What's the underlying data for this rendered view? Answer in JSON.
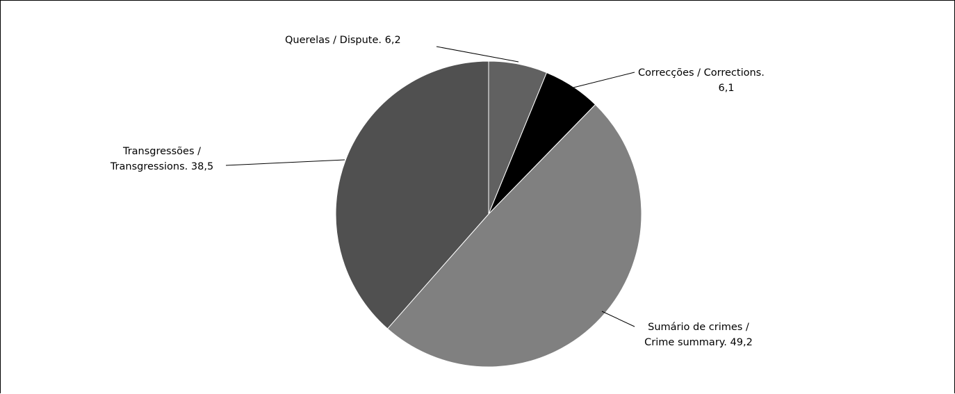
{
  "chart_data": {
    "type": "pie",
    "title": "",
    "slices": [
      {
        "label_line1": "Querelas / Dispute. 6,2",
        "label_line2": "",
        "value": 6.2,
        "color": "#616161"
      },
      {
        "label_line1": "Correcções / Corrections.",
        "label_line2": "6,1",
        "value": 6.1,
        "color": "#000000"
      },
      {
        "label_line1": "Sumário de crimes /",
        "label_line2": "Crime summary. 49,2",
        "value": 49.2,
        "color": "#808080"
      },
      {
        "label_line1": "Transgressões /",
        "label_line2": "Transgressions. 38,5",
        "value": 38.5,
        "color": "#505050"
      }
    ]
  }
}
